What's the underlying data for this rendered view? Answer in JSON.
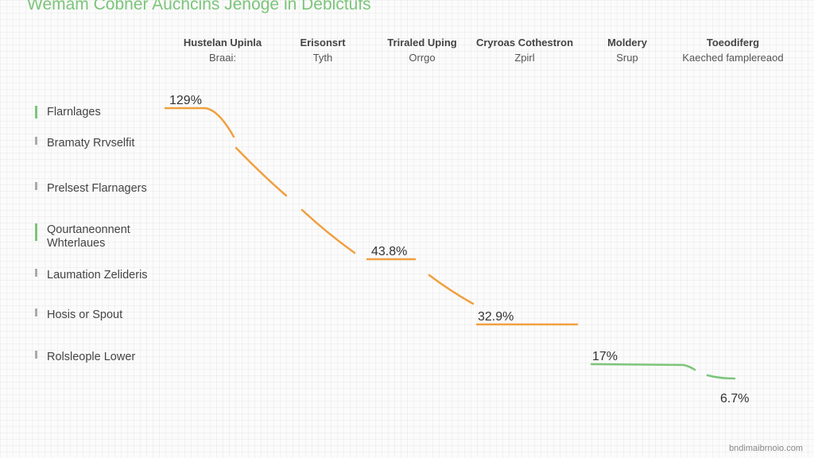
{
  "title": "Wemam Cobner Auchcins Jenoge in Deblctufs",
  "columns": [
    {
      "header": "Hustelan Upinla",
      "sub": "Braai:"
    },
    {
      "header": "Erisonsrt",
      "sub": "Tyth"
    },
    {
      "header": "Triraled Uping",
      "sub": "Orrgo"
    },
    {
      "header": "Cryroas Cothestron",
      "sub": "Zpirl"
    },
    {
      "header": "Moldery",
      "sub": "Srup"
    },
    {
      "header": "Toeodiferg",
      "sub": "Kaeched famplereaod"
    }
  ],
  "rows": [
    {
      "label": "Flarnlages",
      "accent": "green"
    },
    {
      "label": "Bramaty Rrvselfit",
      "accent": "gray"
    },
    {
      "label": "Prelsest Flarnagers",
      "accent": "gray"
    },
    {
      "label": "Qourtaneonnent Whterlaues",
      "accent": "green"
    },
    {
      "label": "Laumation Zelideris",
      "accent": "gray"
    },
    {
      "label": "Hosis or Spout",
      "accent": "gray"
    },
    {
      "label": "Rolsleople Lower",
      "accent": "gray"
    }
  ],
  "chart_data": {
    "type": "line",
    "x": [
      1,
      2,
      3,
      4,
      5,
      6
    ],
    "categories": [
      "Hustelan Upinla",
      "Erisonsrt",
      "Triraled Uping",
      "Cryroas Cothestron",
      "Moldery",
      "Toeodiferg"
    ],
    "series": [
      {
        "values": [
          129,
          43.8,
          43.8,
          32.9,
          17,
          6.7
        ],
        "color": "#f0a040"
      }
    ],
    "data_labels": [
      "129%",
      "43.8%",
      "",
      "32.9%",
      "17%",
      "6.7%"
    ],
    "colors": {
      "high": "#f0a040",
      "low": "#7cc57a"
    },
    "grid": true,
    "legend": "none"
  },
  "watermark": "bndimaibrnoio.com"
}
